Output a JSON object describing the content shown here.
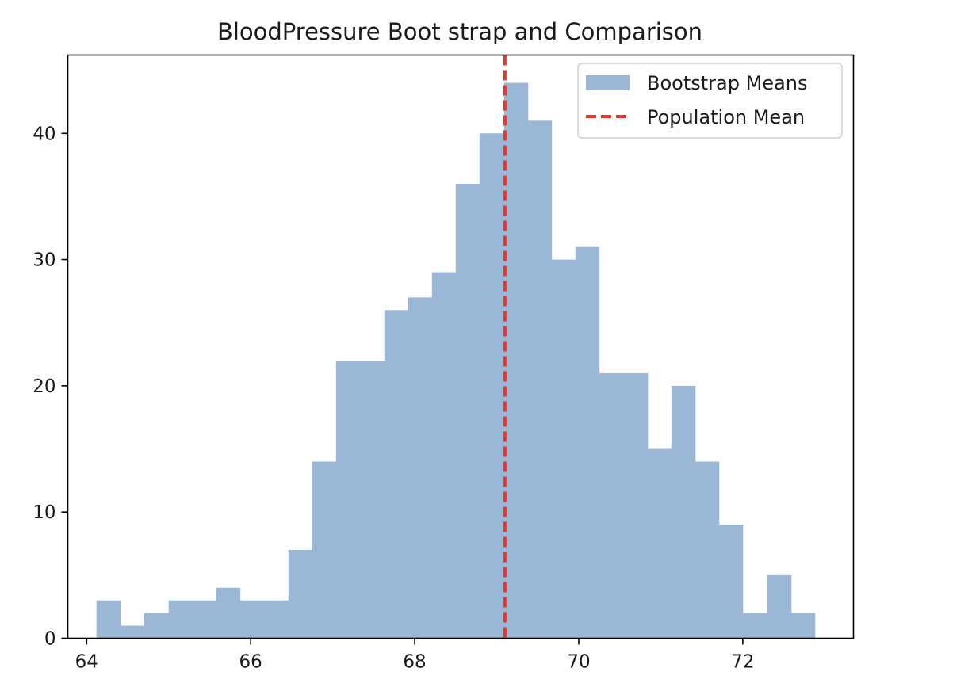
{
  "chart_data": {
    "type": "bar",
    "title": "BloodPressure Boot strap and Comparison",
    "xlabel": "",
    "ylabel": "",
    "xlim": [
      63.77,
      73.35
    ],
    "ylim": [
      0,
      46.2
    ],
    "xticks": [
      64,
      66,
      68,
      70,
      72
    ],
    "yticks": [
      0,
      10,
      20,
      30,
      40
    ],
    "grid": false,
    "legend_position": "top-right",
    "series": [
      {
        "name": "Bootstrap Means",
        "kind": "histogram",
        "color": "#9ab8d6",
        "bin_edges": [
          64.12,
          64.41,
          64.7,
          65.0,
          65.29,
          65.58,
          65.87,
          66.17,
          66.46,
          66.75,
          67.04,
          67.33,
          67.63,
          67.92,
          68.21,
          68.5,
          68.79,
          69.09,
          69.38,
          69.67,
          69.96,
          70.25,
          70.54,
          70.84,
          71.13,
          71.42,
          71.71,
          72.0,
          72.3,
          72.59,
          72.88
        ],
        "values": [
          3,
          1,
          2,
          3,
          3,
          4,
          3,
          3,
          7,
          14,
          22,
          22,
          26,
          27,
          29,
          36,
          40,
          44,
          41,
          30,
          31,
          21,
          21,
          15,
          20,
          14,
          9,
          2,
          5,
          2
        ]
      },
      {
        "name": "Population Mean",
        "kind": "vline",
        "color": "#e8352c",
        "x": 69.1
      }
    ]
  }
}
